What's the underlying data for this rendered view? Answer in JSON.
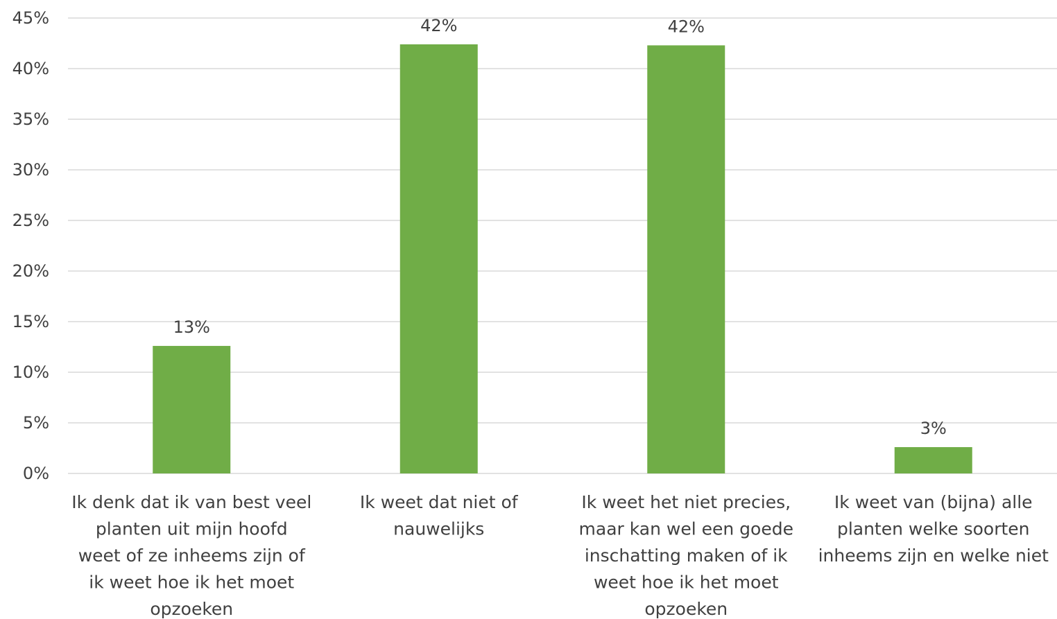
{
  "chart_data": {
    "type": "bar",
    "title": "",
    "xlabel": "",
    "ylabel": "",
    "ylim": [
      0,
      45
    ],
    "y_ticks": [
      0,
      5,
      10,
      15,
      20,
      25,
      30,
      35,
      40,
      45
    ],
    "y_tick_suffix": "%",
    "grid": true,
    "legend": "none",
    "bar_color": "#70AD47",
    "grid_color": "#D9D9D9",
    "categories": [
      [
        "Ik denk dat ik van best veel",
        "planten uit mijn hoofd",
        "weet of ze inheems zijn of",
        "ik weet hoe ik het moet",
        "opzoeken"
      ],
      [
        "Ik weet dat niet of",
        "nauwelijks"
      ],
      [
        "Ik weet het niet precies,",
        "maar kan wel een goede",
        "inschatting maken of ik",
        "weet hoe ik het moet",
        "opzoeken"
      ],
      [
        "Ik weet van (bijna) alle",
        "planten welke soorten",
        "inheems zijn en welke niet"
      ]
    ],
    "values": [
      12.6,
      42.4,
      42.3,
      2.6
    ],
    "data_labels": [
      "13%",
      "42%",
      "42%",
      "3%"
    ]
  }
}
